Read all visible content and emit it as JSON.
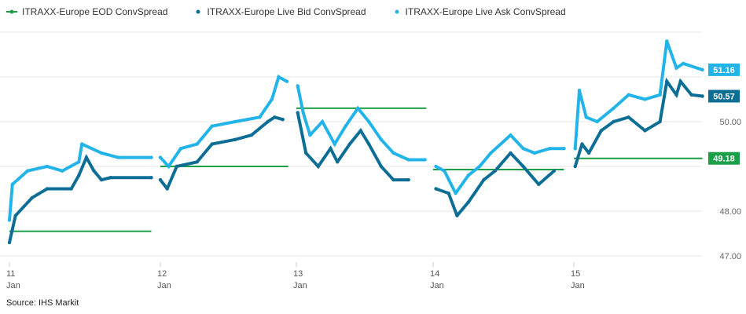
{
  "source": "Source: IHS  Markit",
  "chart_data": {
    "type": "line",
    "xlabel": "",
    "ylabel": "",
    "ylim": [
      47,
      52
    ],
    "yticks": [
      "47.00",
      "48.00",
      "50.00"
    ],
    "xticks": [
      {
        "day": 11,
        "label": "11",
        "sub": "Jan"
      },
      {
        "day": 12,
        "label": "12",
        "sub": "Jan"
      },
      {
        "day": 13,
        "label": "13",
        "sub": "Jan"
      },
      {
        "day": 14,
        "label": "14",
        "sub": "Jan"
      },
      {
        "day": 15,
        "label": "15",
        "sub": "Jan"
      }
    ],
    "grid": true,
    "legend": "top-left",
    "series": [
      {
        "name": "ITRAXX-Europe EOD ConvSpread",
        "color": "#1a9e48",
        "style": "step",
        "segments": [
          [
            11.0,
            11.94,
            47.55
          ],
          [
            12.0,
            12.94,
            49.0
          ],
          [
            13.0,
            13.95,
            50.3
          ],
          [
            14.0,
            14.93,
            48.93
          ],
          [
            15.0,
            15.94,
            49.18
          ]
        ],
        "last": "49.18"
      },
      {
        "name": "ITRAXX-Europe Live Bid ConvSpread",
        "color": "#0c6e95",
        "style": "dots",
        "points": [
          [
            11.0,
            47.3
          ],
          [
            11.04,
            47.9
          ],
          [
            11.15,
            48.3
          ],
          [
            11.25,
            48.5
          ],
          [
            11.41,
            48.5
          ],
          [
            11.46,
            48.8
          ],
          [
            11.51,
            49.2
          ],
          [
            11.56,
            48.9
          ],
          [
            11.61,
            48.7
          ],
          [
            11.67,
            48.75
          ],
          [
            11.94,
            48.75
          ],
          [
            12.0,
            48.7
          ],
          [
            12.05,
            48.5
          ],
          [
            12.12,
            49.0
          ],
          [
            12.27,
            49.1
          ],
          [
            12.38,
            49.5
          ],
          [
            12.55,
            49.6
          ],
          [
            12.67,
            49.7
          ],
          [
            12.79,
            50.0
          ],
          [
            12.84,
            50.1
          ],
          [
            12.9,
            50.05
          ],
          [
            13.01,
            50.2
          ],
          [
            13.07,
            49.3
          ],
          [
            13.16,
            49.0
          ],
          [
            13.25,
            49.4
          ],
          [
            13.3,
            49.1
          ],
          [
            13.39,
            49.5
          ],
          [
            13.47,
            49.8
          ],
          [
            13.53,
            49.5
          ],
          [
            13.62,
            49.0
          ],
          [
            13.71,
            48.7
          ],
          [
            13.82,
            48.7
          ],
          [
            14.02,
            48.5
          ],
          [
            14.11,
            48.4
          ],
          [
            14.17,
            47.9
          ],
          [
            14.25,
            48.2
          ],
          [
            14.36,
            48.7
          ],
          [
            14.44,
            48.9
          ],
          [
            14.55,
            49.3
          ],
          [
            14.64,
            49.0
          ],
          [
            14.75,
            48.6
          ],
          [
            14.86,
            48.9
          ],
          [
            15.01,
            49.0
          ],
          [
            15.06,
            49.5
          ],
          [
            15.11,
            49.3
          ],
          [
            15.2,
            49.8
          ],
          [
            15.29,
            50.0
          ],
          [
            15.4,
            50.1
          ],
          [
            15.52,
            49.8
          ],
          [
            15.63,
            50.0
          ],
          [
            15.68,
            50.9
          ],
          [
            15.75,
            50.6
          ],
          [
            15.78,
            50.9
          ],
          [
            15.86,
            50.6
          ],
          [
            15.94,
            50.57
          ]
        ],
        "last": "50.57"
      },
      {
        "name": "ITRAXX-Europe Live Ask ConvSpread",
        "color": "#22b4e8",
        "style": "dots",
        "points": [
          [
            11.0,
            47.8
          ],
          [
            11.02,
            48.6
          ],
          [
            11.12,
            48.9
          ],
          [
            11.25,
            49.0
          ],
          [
            11.35,
            48.9
          ],
          [
            11.46,
            49.1
          ],
          [
            11.48,
            49.5
          ],
          [
            11.61,
            49.3
          ],
          [
            11.72,
            49.2
          ],
          [
            11.94,
            49.2
          ],
          [
            12.0,
            49.2
          ],
          [
            12.06,
            49.0
          ],
          [
            12.15,
            49.4
          ],
          [
            12.27,
            49.5
          ],
          [
            12.38,
            49.9
          ],
          [
            12.55,
            50.0
          ],
          [
            12.73,
            50.1
          ],
          [
            12.82,
            50.5
          ],
          [
            12.87,
            51.0
          ],
          [
            12.93,
            50.9
          ],
          [
            13.01,
            50.8
          ],
          [
            13.05,
            50.2
          ],
          [
            13.1,
            49.7
          ],
          [
            13.19,
            50.0
          ],
          [
            13.28,
            49.5
          ],
          [
            13.36,
            49.9
          ],
          [
            13.45,
            50.3
          ],
          [
            13.53,
            50.0
          ],
          [
            13.62,
            49.6
          ],
          [
            13.71,
            49.3
          ],
          [
            13.82,
            49.15
          ],
          [
            13.94,
            49.15
          ],
          [
            14.02,
            49.0
          ],
          [
            14.08,
            48.9
          ],
          [
            14.16,
            48.4
          ],
          [
            14.25,
            48.8
          ],
          [
            14.33,
            49.0
          ],
          [
            14.41,
            49.3
          ],
          [
            14.55,
            49.7
          ],
          [
            14.64,
            49.4
          ],
          [
            14.72,
            49.3
          ],
          [
            14.83,
            49.4
          ],
          [
            14.93,
            49.4
          ],
          [
            15.01,
            49.4
          ],
          [
            15.04,
            50.7
          ],
          [
            15.09,
            50.1
          ],
          [
            15.17,
            50.0
          ],
          [
            15.29,
            50.3
          ],
          [
            15.4,
            50.6
          ],
          [
            15.52,
            50.5
          ],
          [
            15.63,
            50.6
          ],
          [
            15.68,
            51.8
          ],
          [
            15.75,
            51.2
          ],
          [
            15.8,
            51.3
          ],
          [
            15.94,
            51.16
          ]
        ],
        "last": "51.16"
      }
    ]
  }
}
